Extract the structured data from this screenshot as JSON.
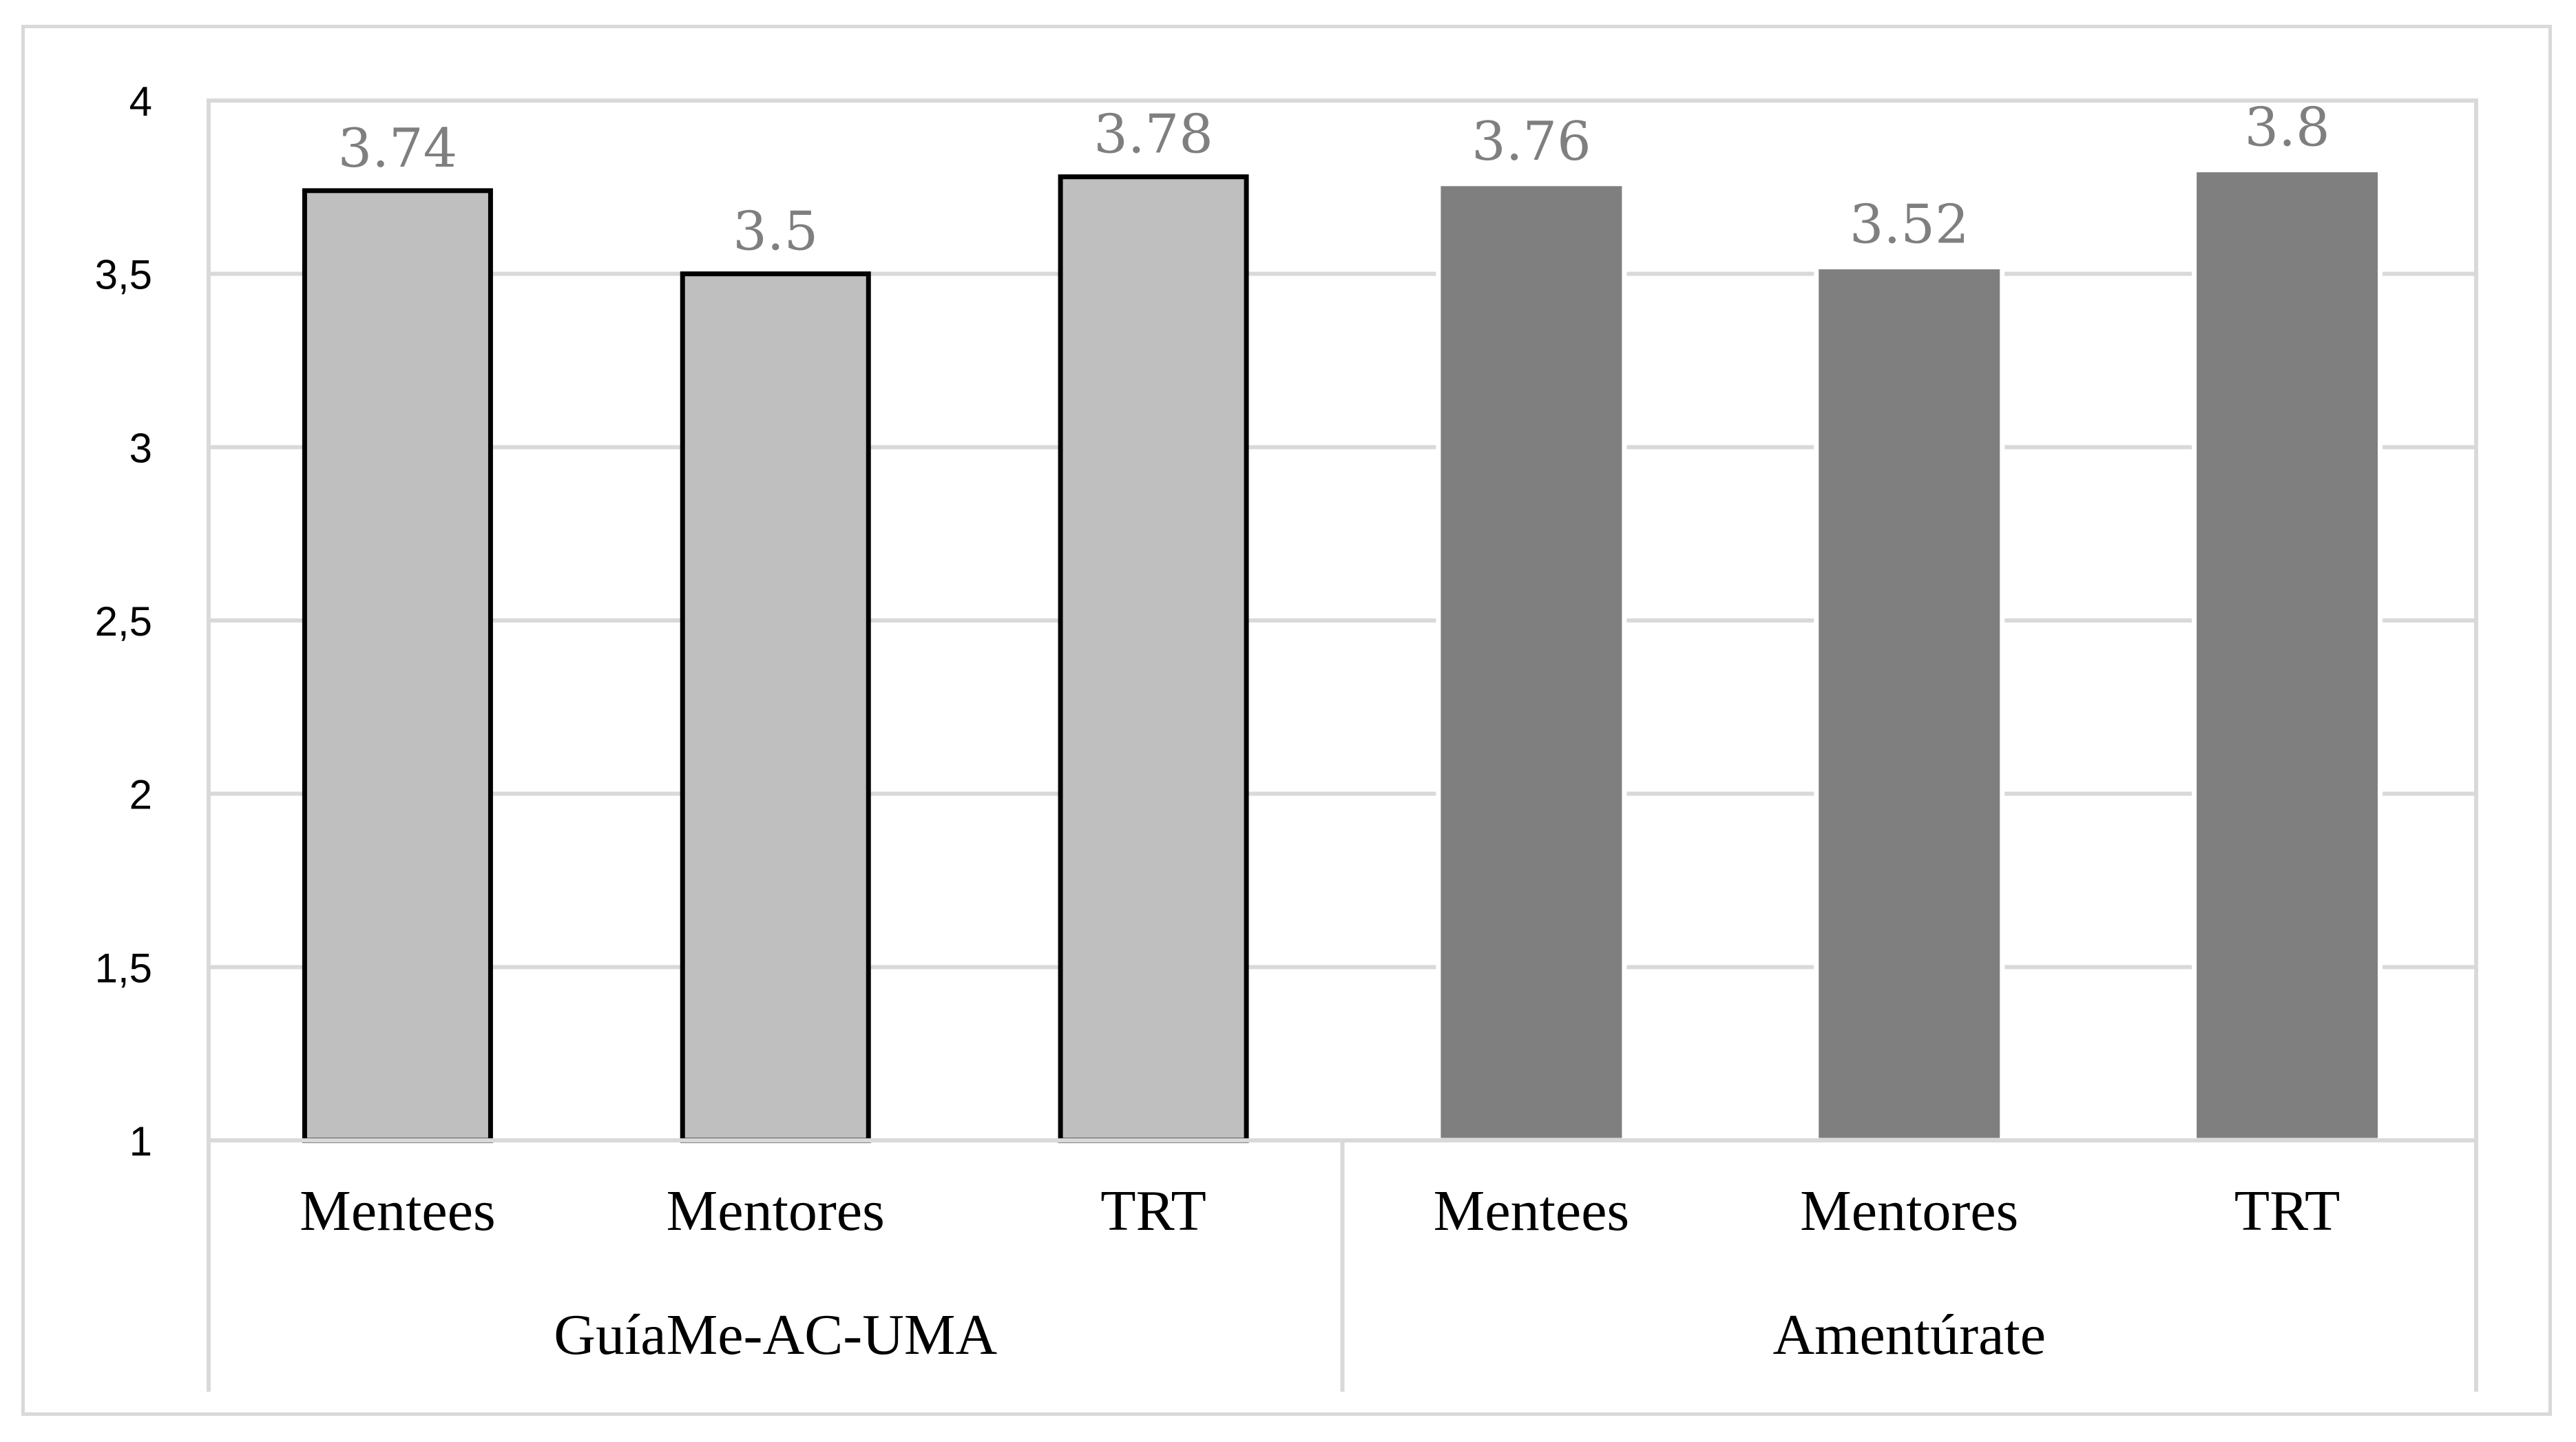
{
  "chart_data": {
    "type": "bar",
    "title": "",
    "xlabel": "",
    "ylabel": "",
    "ylim": [
      1,
      4
    ],
    "yticks": [
      "1",
      "1,5",
      "2",
      "2,5",
      "3",
      "3,5",
      "4"
    ],
    "ytick_values": [
      1,
      1.5,
      2,
      2.5,
      3,
      3.5,
      4
    ],
    "grid": true,
    "legend": "none",
    "groups": [
      {
        "name": "GuíaMe-AC-UMA",
        "color": "#bfbfbf",
        "outline": "#000000",
        "bars": [
          {
            "category": "Mentees",
            "value": 3.74,
            "label": "3.74"
          },
          {
            "category": "Mentores",
            "value": 3.5,
            "label": "3.5"
          },
          {
            "category": "TRT",
            "value": 3.78,
            "label": "3.78"
          }
        ]
      },
      {
        "name": "Amentúrate",
        "color": "#7f7f7f",
        "outline": "#ffffff",
        "bars": [
          {
            "category": "Mentees",
            "value": 3.76,
            "label": "3.76"
          },
          {
            "category": "Mentores",
            "value": 3.52,
            "label": "3.52"
          },
          {
            "category": "TRT",
            "value": 3.8,
            "label": "3.8"
          }
        ]
      }
    ]
  }
}
